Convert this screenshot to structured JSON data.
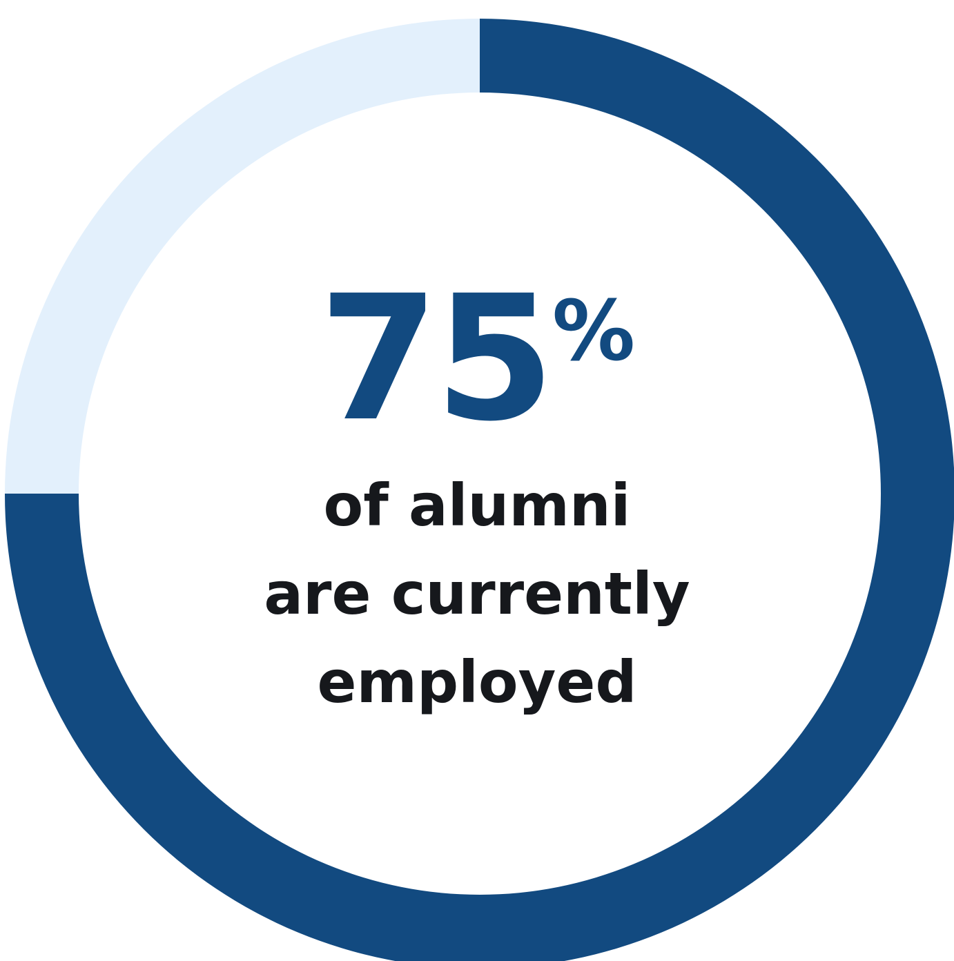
{
  "chart_data": {
    "type": "pie",
    "style": "donut",
    "slices": [
      {
        "label": "",
        "value": 75,
        "color": "#124a80"
      },
      {
        "label": "",
        "value": 25,
        "color": "#e3f0fc"
      }
    ],
    "start_angle": "top",
    "direction": "clockwise",
    "center_label": {
      "value": "75",
      "unit": "%",
      "caption": [
        "of alumni",
        "are currently",
        "employed"
      ]
    },
    "legend": "none"
  }
}
